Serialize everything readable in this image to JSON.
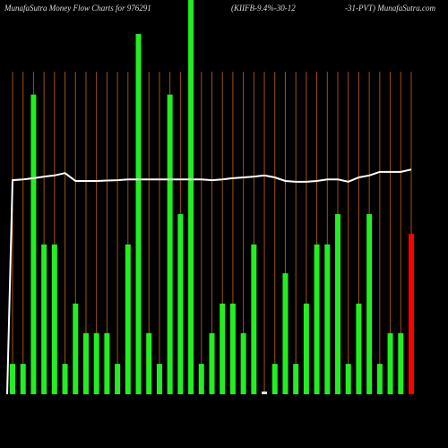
{
  "chart_data": {
    "type": "bar",
    "title": [
      "MunafaSutra  Money Flow  Charts for 976291",
      "(KIIFB-9.4%-30-12",
      "-31-PVT) MunafaSutra.com"
    ],
    "categories": [
      null,
      null,
      null,
      null,
      null,
      null,
      null,
      null,
      null,
      null,
      null,
      null,
      null,
      null,
      null,
      null,
      null,
      null,
      null,
      null,
      null,
      null,
      null,
      null,
      null,
      null,
      null,
      null,
      null,
      null,
      null,
      null,
      null,
      null,
      null,
      null,
      null,
      null,
      null
    ],
    "values": [
      7.7,
      7.7,
      76,
      38,
      38,
      7.7,
      23,
      15.5,
      15.5,
      15.5,
      7.7,
      38,
      91.4,
      15.5,
      7.7,
      76,
      45.7,
      100,
      7.7,
      15.5,
      23,
      23,
      15.5,
      38,
      0.7,
      7.7,
      30.7,
      7.7,
      23,
      38,
      38,
      45.7,
      7.7,
      23,
      45.7,
      7.7,
      15.5,
      15.5,
      40.7
    ],
    "colors": [
      "#22ee22",
      "#22ee22",
      "#22ee22",
      "#22ee22",
      "#22ee22",
      "#22ee22",
      "#22ee22",
      "#22ee22",
      "#22ee22",
      "#22ee22",
      "#22ee22",
      "#22ee22",
      "#22ee22",
      "#22ee22",
      "#22ee22",
      "#22ee22",
      "#22ee22",
      "#22ee22",
      "#22ee22",
      "#22ee22",
      "#22ee22",
      "#22ee22",
      "#22ee22",
      "#22ee22",
      "#dddddd",
      "#22ee22",
      "#22ee22",
      "#22ee22",
      "#22ee22",
      "#22ee22",
      "#22ee22",
      "#22ee22",
      "#22ee22",
      "#22ee22",
      "#22ee22",
      "#22ee22",
      "#22ee22",
      "#22ee22",
      "#ff0000"
    ],
    "line": {
      "color": "#ffffff",
      "values": [
        54.3,
        54.5,
        54.8,
        55.2,
        55.5,
        56.1,
        54.1,
        54.1,
        54.1,
        54.2,
        54.3,
        54.5,
        54.5,
        54.5,
        54.5,
        54.5,
        54.5,
        54.5,
        54.5,
        54.3,
        54.5,
        54.8,
        55,
        55.2,
        55.5,
        55,
        54.1,
        53.9,
        53.9,
        54.1,
        54.5,
        54.5,
        53.9,
        55,
        55.5,
        56.4,
        56.4,
        56.4,
        57
      ]
    },
    "ylim": [
      0,
      100
    ],
    "gridline_color": "#a0520a"
  }
}
